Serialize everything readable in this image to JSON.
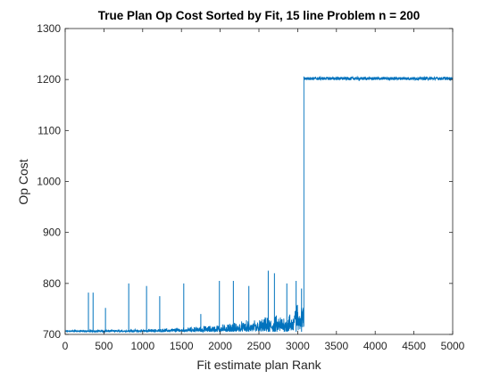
{
  "chart_data": {
    "type": "line",
    "title": "True Plan Op Cost Sorted by Fit, 15 line Problem n = 200",
    "xlabel": "Fit estimate plan Rank",
    "ylabel": "Op Cost",
    "xlim": [
      0,
      5000
    ],
    "ylim": [
      700,
      1300
    ],
    "xticks": [
      0,
      500,
      1000,
      1500,
      2000,
      2500,
      3000,
      3500,
      4000,
      4500,
      5000
    ],
    "yticks": [
      700,
      800,
      900,
      1000,
      1100,
      1200,
      1300
    ],
    "xtick_labels": [
      "0",
      "500",
      "1000",
      "1500",
      "2000",
      "2500",
      "3000",
      "3500",
      "4000",
      "4500",
      "5000"
    ],
    "ytick_labels": [
      "700",
      "800",
      "900",
      "1000",
      "1100",
      "1200",
      "1300"
    ],
    "grid": false,
    "box": true,
    "series": [
      {
        "color": "#0072BD",
        "segments": [
          {
            "x_range": [
              1,
              3080
            ],
            "baseline": 705,
            "noise_rising_from": 3,
            "noise_rising_to": 35,
            "description_values": "low cost regime ~700-790 with spikes"
          },
          {
            "x_range": [
              3080,
              5000
            ],
            "baseline": 1202,
            "noise": 3
          }
        ],
        "spikes": [
          {
            "x": 300,
            "y": 782
          },
          {
            "x": 360,
            "y": 782
          },
          {
            "x": 520,
            "y": 752
          },
          {
            "x": 820,
            "y": 800
          },
          {
            "x": 1050,
            "y": 795
          },
          {
            "x": 1220,
            "y": 775
          },
          {
            "x": 1530,
            "y": 800
          },
          {
            "x": 1750,
            "y": 740
          },
          {
            "x": 1990,
            "y": 805
          },
          {
            "x": 2170,
            "y": 805
          },
          {
            "x": 2370,
            "y": 795
          },
          {
            "x": 2620,
            "y": 825
          },
          {
            "x": 2700,
            "y": 820
          },
          {
            "x": 2860,
            "y": 800
          },
          {
            "x": 2980,
            "y": 805
          },
          {
            "x": 3050,
            "y": 790
          }
        ],
        "jump_x": 3080,
        "jump_from": 732,
        "jump_to": 1205
      }
    ]
  }
}
